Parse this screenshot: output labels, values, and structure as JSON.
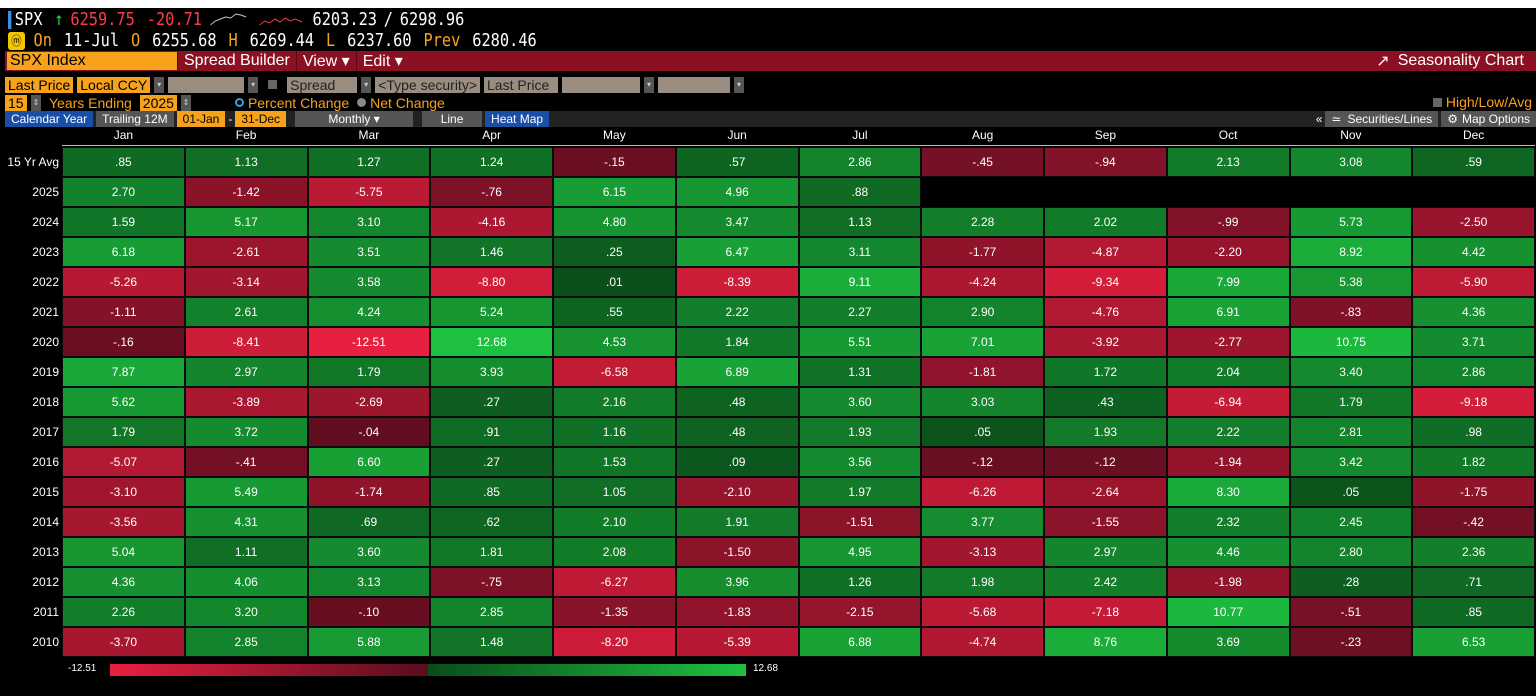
{
  "quote": {
    "ticker": "SPX",
    "arrow": "↑",
    "last": "6259.75",
    "change": "-20.71",
    "range_low": "6203.23",
    "range_sep": "/",
    "range_high": "6298.96",
    "on_label": "On",
    "date": "11-Jul",
    "open_label": "O",
    "open": "6255.68",
    "high_label": "H",
    "high": "6269.44",
    "low_label": "L",
    "low": "6237.60",
    "prev_label": "Prev",
    "prev": "6280.46"
  },
  "toolbar": {
    "security": "SPX Index",
    "spread_builder": "Spread Builder",
    "view": "View ▾",
    "edit": "Edit ▾",
    "seasonality": "Seasonality Chart"
  },
  "settings": {
    "field": "Last Price",
    "currency": "Local CCY",
    "spread": "Spread",
    "type_security": "<Type security>",
    "field2": "Last Price",
    "years": "15",
    "years_label": "Years Ending",
    "end_year": "2025",
    "percent_change": "Percent Change",
    "net_change": "Net Change",
    "high_low_avg": "High/Low/Avg"
  },
  "tabs": {
    "calendar_year": "Calendar Year",
    "trailing": "Trailing 12M",
    "from": "01-Jan",
    "dash": "-",
    "to": "31-Dec",
    "frequency": "Monthly ▾",
    "line": "Line",
    "heat_map": "Heat Map",
    "collapse": "«",
    "securities_lines": "Securities/Lines",
    "map_options": "Map Options"
  },
  "colors": {
    "negative_max": "#e8203f",
    "negative_min": "#5a0d1e",
    "positive_min": "#0a4d1a",
    "positive_max": "#1ec040",
    "toolbar_red": "#8c1024",
    "accent_orange": "#f7a21b",
    "tab_blue": "#1a4fa8"
  },
  "chart_data": {
    "type": "heatmap",
    "columns": [
      "Jan",
      "Feb",
      "Mar",
      "Apr",
      "May",
      "Jun",
      "Jul",
      "Aug",
      "Sep",
      "Oct",
      "Nov",
      "Dec"
    ],
    "rows": [
      "15 Yr Avg",
      "2025",
      "2024",
      "2023",
      "2022",
      "2021",
      "2020",
      "2019",
      "2018",
      "2017",
      "2016",
      "2015",
      "2014",
      "2013",
      "2012",
      "2011",
      "2010"
    ],
    "values": [
      [
        ".85",
        "1.13",
        "1.27",
        "1.24",
        "-.15",
        ".57",
        "2.86",
        "-.45",
        "-.94",
        "2.13",
        "3.08",
        ".59"
      ],
      [
        "2.70",
        "-1.42",
        "-5.75",
        "-.76",
        "6.15",
        "4.96",
        ".88",
        "",
        "",
        "",
        "",
        ""
      ],
      [
        "1.59",
        "5.17",
        "3.10",
        "-4.16",
        "4.80",
        "3.47",
        "1.13",
        "2.28",
        "2.02",
        "-.99",
        "5.73",
        "-2.50"
      ],
      [
        "6.18",
        "-2.61",
        "3.51",
        "1.46",
        ".25",
        "6.47",
        "3.11",
        "-1.77",
        "-4.87",
        "-2.20",
        "8.92",
        "4.42"
      ],
      [
        "-5.26",
        "-3.14",
        "3.58",
        "-8.80",
        ".01",
        "-8.39",
        "9.11",
        "-4.24",
        "-9.34",
        "7.99",
        "5.38",
        "-5.90"
      ],
      [
        "-1.11",
        "2.61",
        "4.24",
        "5.24",
        ".55",
        "2.22",
        "2.27",
        "2.90",
        "-4.76",
        "6.91",
        "-.83",
        "4.36"
      ],
      [
        "-.16",
        "-8.41",
        "-12.51",
        "12.68",
        "4.53",
        "1.84",
        "5.51",
        "7.01",
        "-3.92",
        "-2.77",
        "10.75",
        "3.71"
      ],
      [
        "7.87",
        "2.97",
        "1.79",
        "3.93",
        "-6.58",
        "6.89",
        "1.31",
        "-1.81",
        "1.72",
        "2.04",
        "3.40",
        "2.86"
      ],
      [
        "5.62",
        "-3.89",
        "-2.69",
        ".27",
        "2.16",
        ".48",
        "3.60",
        "3.03",
        ".43",
        "-6.94",
        "1.79",
        "-9.18"
      ],
      [
        "1.79",
        "3.72",
        "-.04",
        ".91",
        "1.16",
        ".48",
        "1.93",
        ".05",
        "1.93",
        "2.22",
        "2.81",
        ".98"
      ],
      [
        "-5.07",
        "-.41",
        "6.60",
        ".27",
        "1.53",
        ".09",
        "3.56",
        "-.12",
        "-.12",
        "-1.94",
        "3.42",
        "1.82"
      ],
      [
        "-3.10",
        "5.49",
        "-1.74",
        ".85",
        "1.05",
        "-2.10",
        "1.97",
        "-6.26",
        "-2.64",
        "8.30",
        ".05",
        "-1.75"
      ],
      [
        "-3.56",
        "4.31",
        ".69",
        ".62",
        "2.10",
        "1.91",
        "-1.51",
        "3.77",
        "-1.55",
        "2.32",
        "2.45",
        "-.42"
      ],
      [
        "5.04",
        "1.11",
        "3.60",
        "1.81",
        "2.08",
        "-1.50",
        "4.95",
        "-3.13",
        "2.97",
        "4.46",
        "2.80",
        "2.36"
      ],
      [
        "4.36",
        "4.06",
        "3.13",
        "-.75",
        "-6.27",
        "3.96",
        "1.26",
        "1.98",
        "2.42",
        "-1.98",
        ".28",
        ".71"
      ],
      [
        "2.26",
        "3.20",
        "-.10",
        "2.85",
        "-1.35",
        "-1.83",
        "-2.15",
        "-5.68",
        "-7.18",
        "10.77",
        "-.51",
        ".85"
      ],
      [
        "-3.70",
        "2.85",
        "5.88",
        "1.48",
        "-8.20",
        "-5.39",
        "6.88",
        "-4.74",
        "8.76",
        "3.69",
        "-.23",
        "6.53"
      ]
    ],
    "scale_min": "-12.51",
    "scale_max": "12.68"
  }
}
